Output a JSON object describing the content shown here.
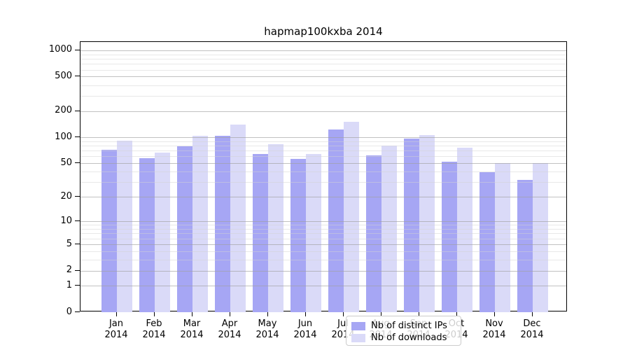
{
  "title": "hapmap100kxba 2014",
  "legend": {
    "items": [
      {
        "label": "Nb of distinct IPs",
        "color": "#a6a6f4"
      },
      {
        "label": "Nb of downloads",
        "color": "#dadaf8"
      }
    ]
  },
  "axes": {
    "y_tick_labels": [
      "0",
      "1",
      "2",
      "5",
      "10",
      "20",
      "50",
      "100",
      "200",
      "500",
      "1000"
    ],
    "x_tick_line1": [
      "Jan",
      "Feb",
      "Mar",
      "Apr",
      "May",
      "Jun",
      "Jul",
      "Aug",
      "Sep",
      "Oct",
      "Nov",
      "Dec"
    ],
    "x_tick_line2": "2014"
  },
  "chart_data": {
    "type": "bar",
    "title": "hapmap100kxba 2014",
    "categories": [
      "Jan 2014",
      "Feb 2014",
      "Mar 2014",
      "Apr 2014",
      "May 2014",
      "Jun 2014",
      "Jul 2014",
      "Aug 2014",
      "Sep 2014",
      "Oct 2014",
      "Nov 2014",
      "Dec 2014"
    ],
    "series": [
      {
        "name": "Nb of distinct IPs",
        "color": "#a6a6f4",
        "values": [
          71,
          57,
          79,
          105,
          64,
          56,
          122,
          62,
          96,
          52,
          39,
          32
        ]
      },
      {
        "name": "Nb of downloads",
        "color": "#dadaf8",
        "values": [
          91,
          66,
          105,
          140,
          83,
          64,
          150,
          80,
          106,
          76,
          50,
          50
        ]
      }
    ],
    "xlabel": "",
    "ylabel": "",
    "yscale": "log1p",
    "y_ticks": [
      0,
      1,
      2,
      5,
      10,
      20,
      50,
      100,
      200,
      500,
      1000
    ],
    "y_minor_gridlines": [
      3,
      4,
      6,
      7,
      8,
      9,
      30,
      40,
      60,
      70,
      80,
      90,
      300,
      400,
      600,
      700,
      800,
      900
    ],
    "ylim": [
      0,
      1250
    ],
    "grid": true,
    "grid_above_bars": true,
    "legend_position": "lower-center"
  }
}
